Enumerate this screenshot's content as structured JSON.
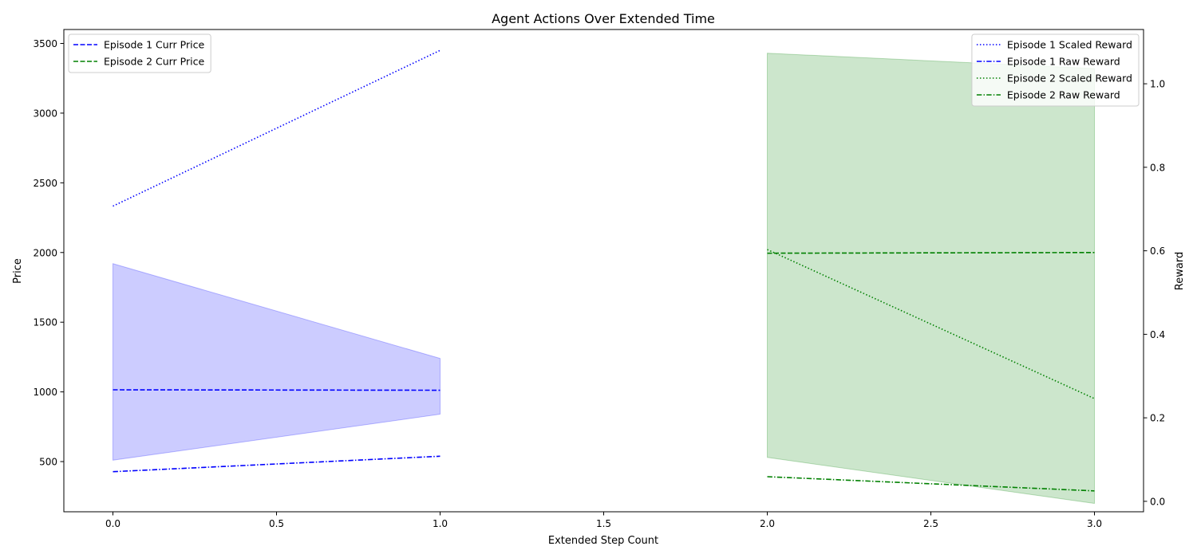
{
  "chart_data": {
    "type": "line",
    "title": "Agent Actions Over Extended Time",
    "xlabel": "Extended Step Count",
    "ylabel": "Price",
    "y2label": "Reward",
    "xlim": [
      -0.15,
      3.15
    ],
    "ylim": [
      140,
      3600
    ],
    "y2lim": [
      -0.025,
      1.13
    ],
    "x_ticks": [
      0.0,
      0.5,
      1.0,
      1.5,
      2.0,
      2.5,
      3.0
    ],
    "x_tick_labels": [
      "0.0",
      "0.5",
      "1.0",
      "1.5",
      "2.0",
      "2.5",
      "3.0"
    ],
    "y_ticks": [
      500,
      1000,
      1500,
      2000,
      2500,
      3000,
      3500
    ],
    "y_tick_labels": [
      "500",
      "1000",
      "1500",
      "2000",
      "2500",
      "3000",
      "3500"
    ],
    "y2_ticks": [
      0.0,
      0.2,
      0.4,
      0.6,
      0.8,
      1.0
    ],
    "y2_tick_labels": [
      "0.0",
      "0.2",
      "0.4",
      "0.6",
      "0.8",
      "1.0"
    ],
    "grid": false,
    "legend_left_placement": "top-left",
    "legend_right_placement": "top-right",
    "bands": [
      {
        "x": [
          0,
          1
        ],
        "lower": [
          510,
          840
        ],
        "upper": [
          1920,
          1240
        ],
        "color": "#0000ff",
        "axis": "left"
      },
      {
        "x": [
          2,
          3
        ],
        "lower": [
          530,
          200
        ],
        "upper": [
          3430,
          3320
        ],
        "color": "#008000",
        "axis": "left"
      }
    ],
    "series": [
      {
        "name": "Episode 1 Curr Price",
        "axis": "left",
        "x": [
          0,
          1
        ],
        "y": [
          1015,
          1012
        ],
        "color": "#0000ff",
        "dash": "dashed"
      },
      {
        "name": "Episode 2 Curr Price",
        "axis": "left",
        "x": [
          2,
          3
        ],
        "y": [
          1995,
          2000
        ],
        "color": "#008000",
        "dash": "dashed"
      },
      {
        "name": "Episode 1 Scaled Reward",
        "axis": "right",
        "x": [
          0,
          1
        ],
        "y": [
          0.707,
          1.08
        ],
        "color": "#0000ff",
        "dash": "dotted"
      },
      {
        "name": "Episode 1 Raw Reward",
        "axis": "right",
        "x": [
          0,
          1
        ],
        "y": [
          0.071,
          0.108
        ],
        "color": "#0000ff",
        "dash": "dashdot"
      },
      {
        "name": "Episode 2 Scaled Reward",
        "axis": "right",
        "x": [
          2,
          3
        ],
        "y": [
          0.603,
          0.246
        ],
        "color": "#008000",
        "dash": "dotted"
      },
      {
        "name": "Episode 2 Raw Reward",
        "axis": "right",
        "x": [
          2,
          3
        ],
        "y": [
          0.059,
          0.025
        ],
        "color": "#008000",
        "dash": "dashdot"
      }
    ],
    "legend_left": [
      "Episode 1 Curr Price",
      "Episode 2 Curr Price"
    ],
    "legend_right": [
      "Episode 1 Scaled Reward",
      "Episode 1 Raw Reward",
      "Episode 2 Scaled Reward",
      "Episode 2 Raw Reward"
    ]
  }
}
